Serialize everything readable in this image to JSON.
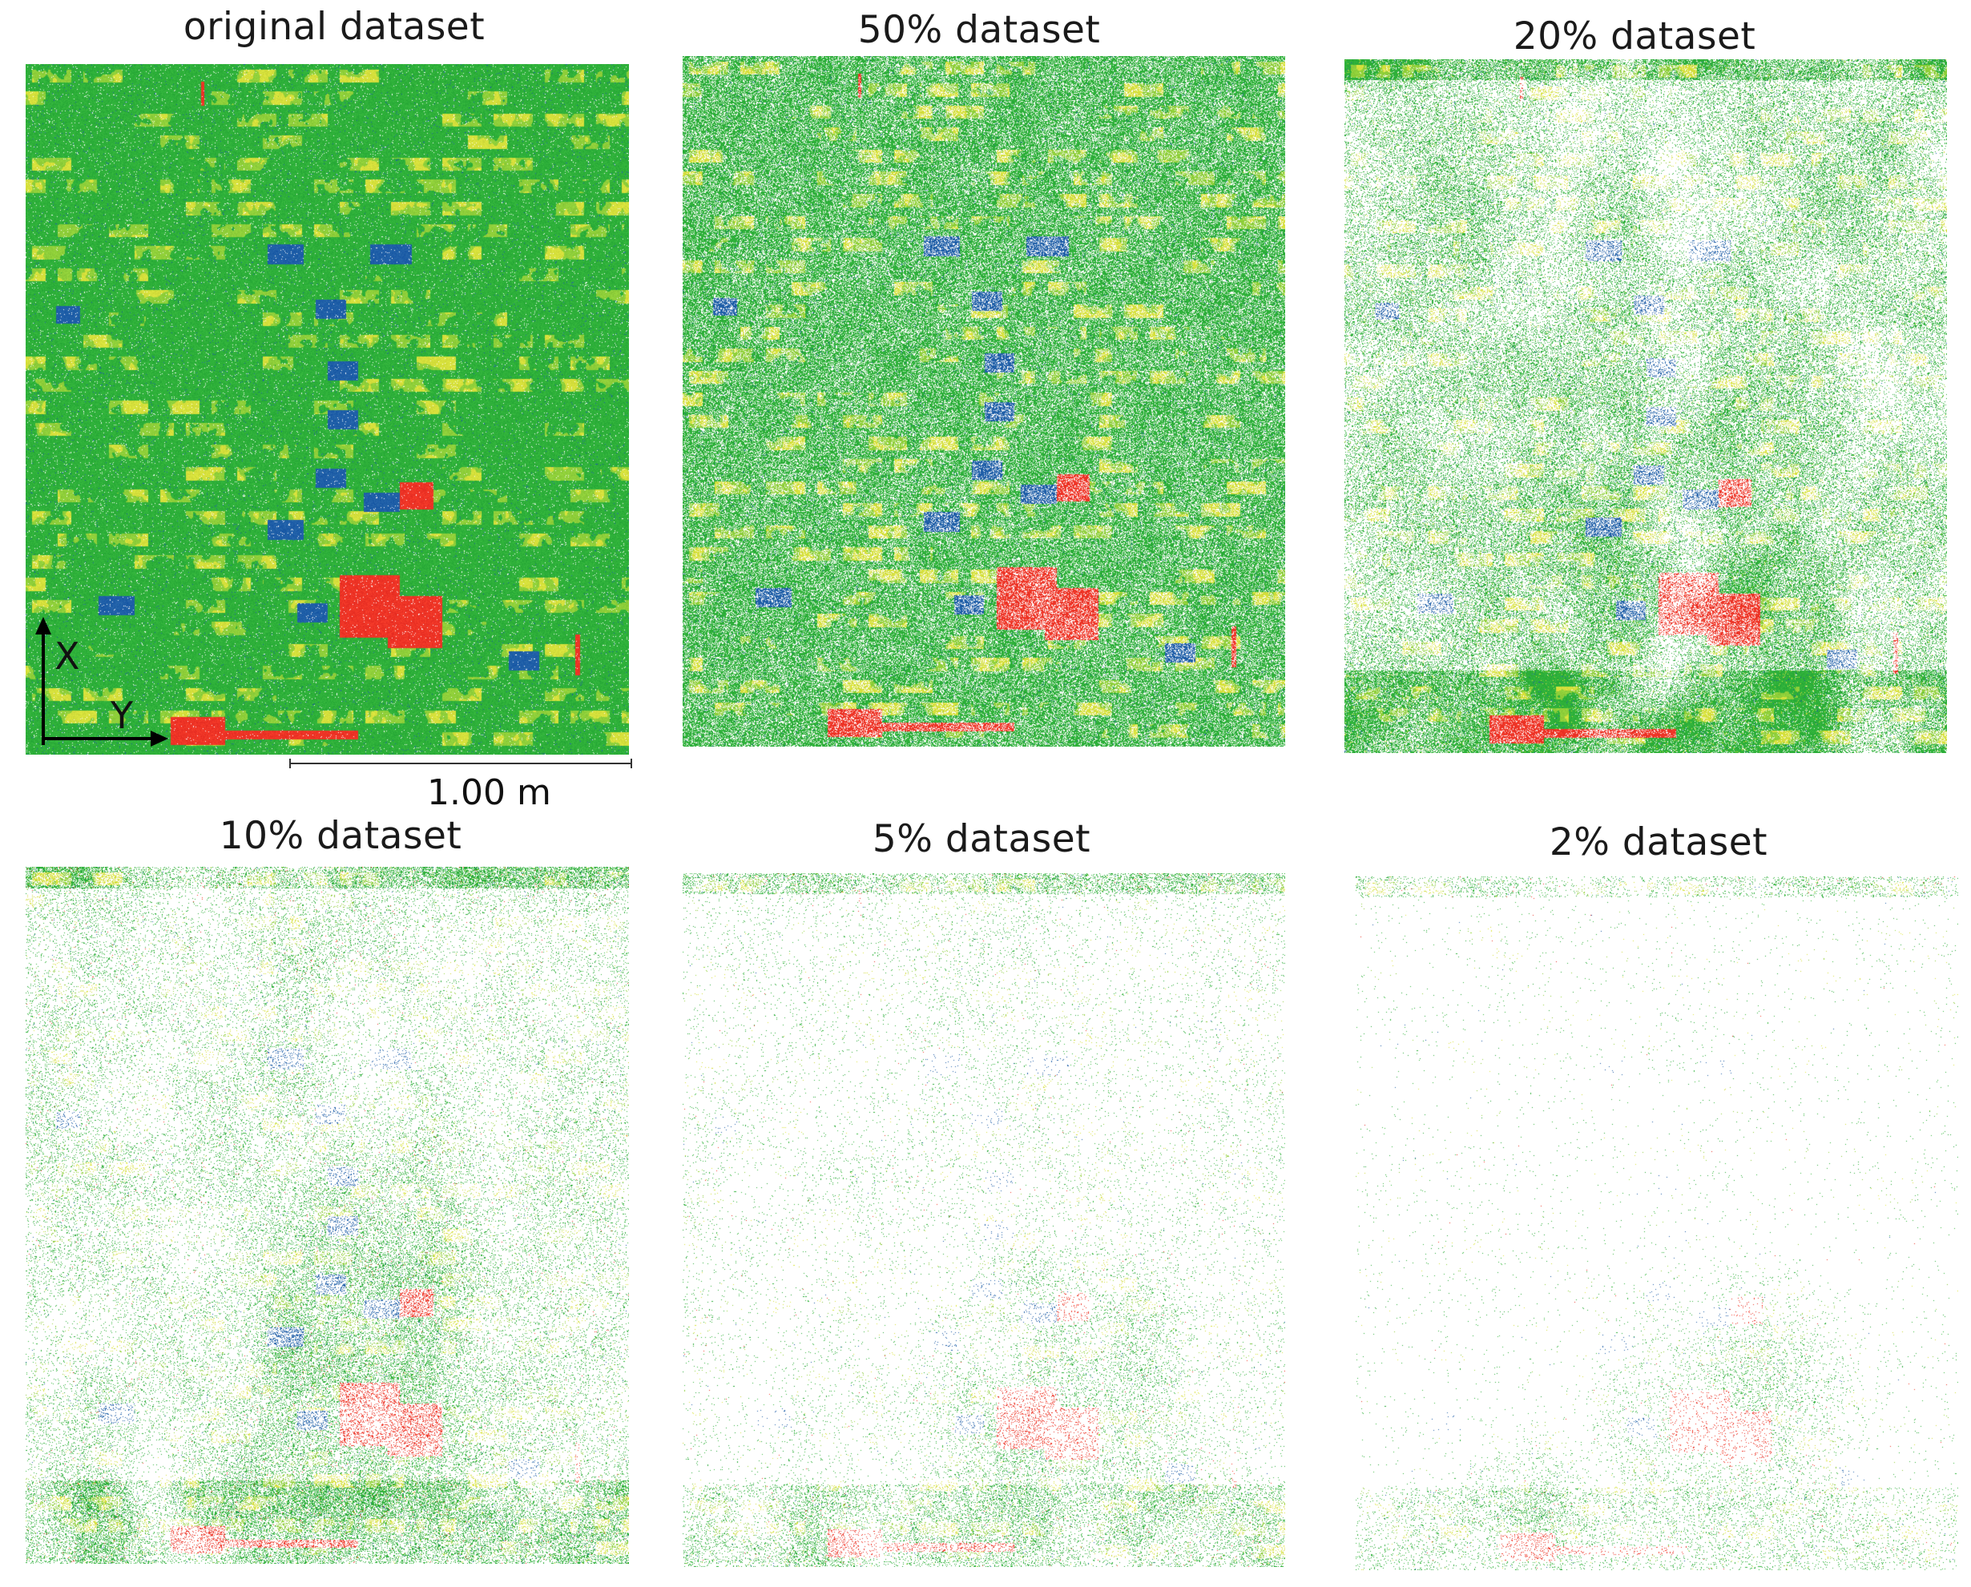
{
  "panels": [
    {
      "title": "original dataset",
      "coverage": 1.0
    },
    {
      "title": "50% dataset",
      "coverage": 0.5
    },
    {
      "title": "20% dataset",
      "coverage": 0.2
    },
    {
      "title": "10% dataset",
      "coverage": 0.1
    },
    {
      "title": "5% dataset",
      "coverage": 0.05
    },
    {
      "title": "2% dataset",
      "coverage": 0.02
    }
  ],
  "axes": {
    "x_label": "X",
    "y_label": "Y"
  },
  "scale_bar": {
    "label": "1.00 m"
  },
  "colors": {
    "base": "#2eb03a",
    "mid": "#8fcf3a",
    "brick": "#d6e03c",
    "low": "#1f5fa8",
    "high": "#ee3426"
  }
}
